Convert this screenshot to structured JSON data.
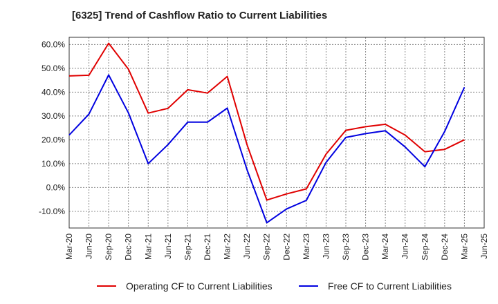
{
  "chart_data": {
    "type": "line",
    "title": "[6325]  Trend of Cashflow Ratio to Current Liabilities",
    "xlabel": "",
    "ylabel": "",
    "categories": [
      "Mar-20",
      "Jun-20",
      "Sep-20",
      "Dec-20",
      "Mar-21",
      "Jun-21",
      "Sep-21",
      "Dec-21",
      "Mar-22",
      "Jun-22",
      "Sep-22",
      "Dec-22",
      "Mar-23",
      "Jun-23",
      "Sep-23",
      "Dec-23",
      "Mar-24",
      "Jun-24",
      "Sep-24",
      "Dec-24",
      "Mar-25",
      "Jun-25"
    ],
    "ylim": [
      -17,
      63
    ],
    "yticks": [
      -10,
      0,
      10,
      20,
      30,
      40,
      50,
      60
    ],
    "ytick_labels": [
      "-10.0%",
      "0.0%",
      "10.0%",
      "20.0%",
      "30.0%",
      "40.0%",
      "50.0%",
      "60.0%"
    ],
    "grid": true,
    "legend_position": "bottom",
    "series": [
      {
        "name": "Operating CF to Current Liabilities",
        "color": "#e00000",
        "values": [
          46.8,
          47.1,
          60.5,
          49.6,
          31.2,
          33.2,
          41.0,
          39.6,
          46.6,
          18.0,
          -5.3,
          -2.7,
          -0.6,
          14.0,
          24.0,
          25.5,
          26.5,
          22.0,
          15.0,
          16.0,
          20.0,
          null
        ]
      },
      {
        "name": "Free CF to Current Liabilities",
        "color": "#0000e0",
        "values": [
          22.0,
          30.8,
          47.2,
          31.3,
          10.0,
          18.0,
          27.4,
          27.4,
          33.3,
          7.5,
          -14.8,
          -9.0,
          -5.4,
          10.5,
          21.0,
          22.6,
          23.8,
          17.0,
          8.7,
          23.5,
          42.0,
          null
        ]
      }
    ]
  }
}
